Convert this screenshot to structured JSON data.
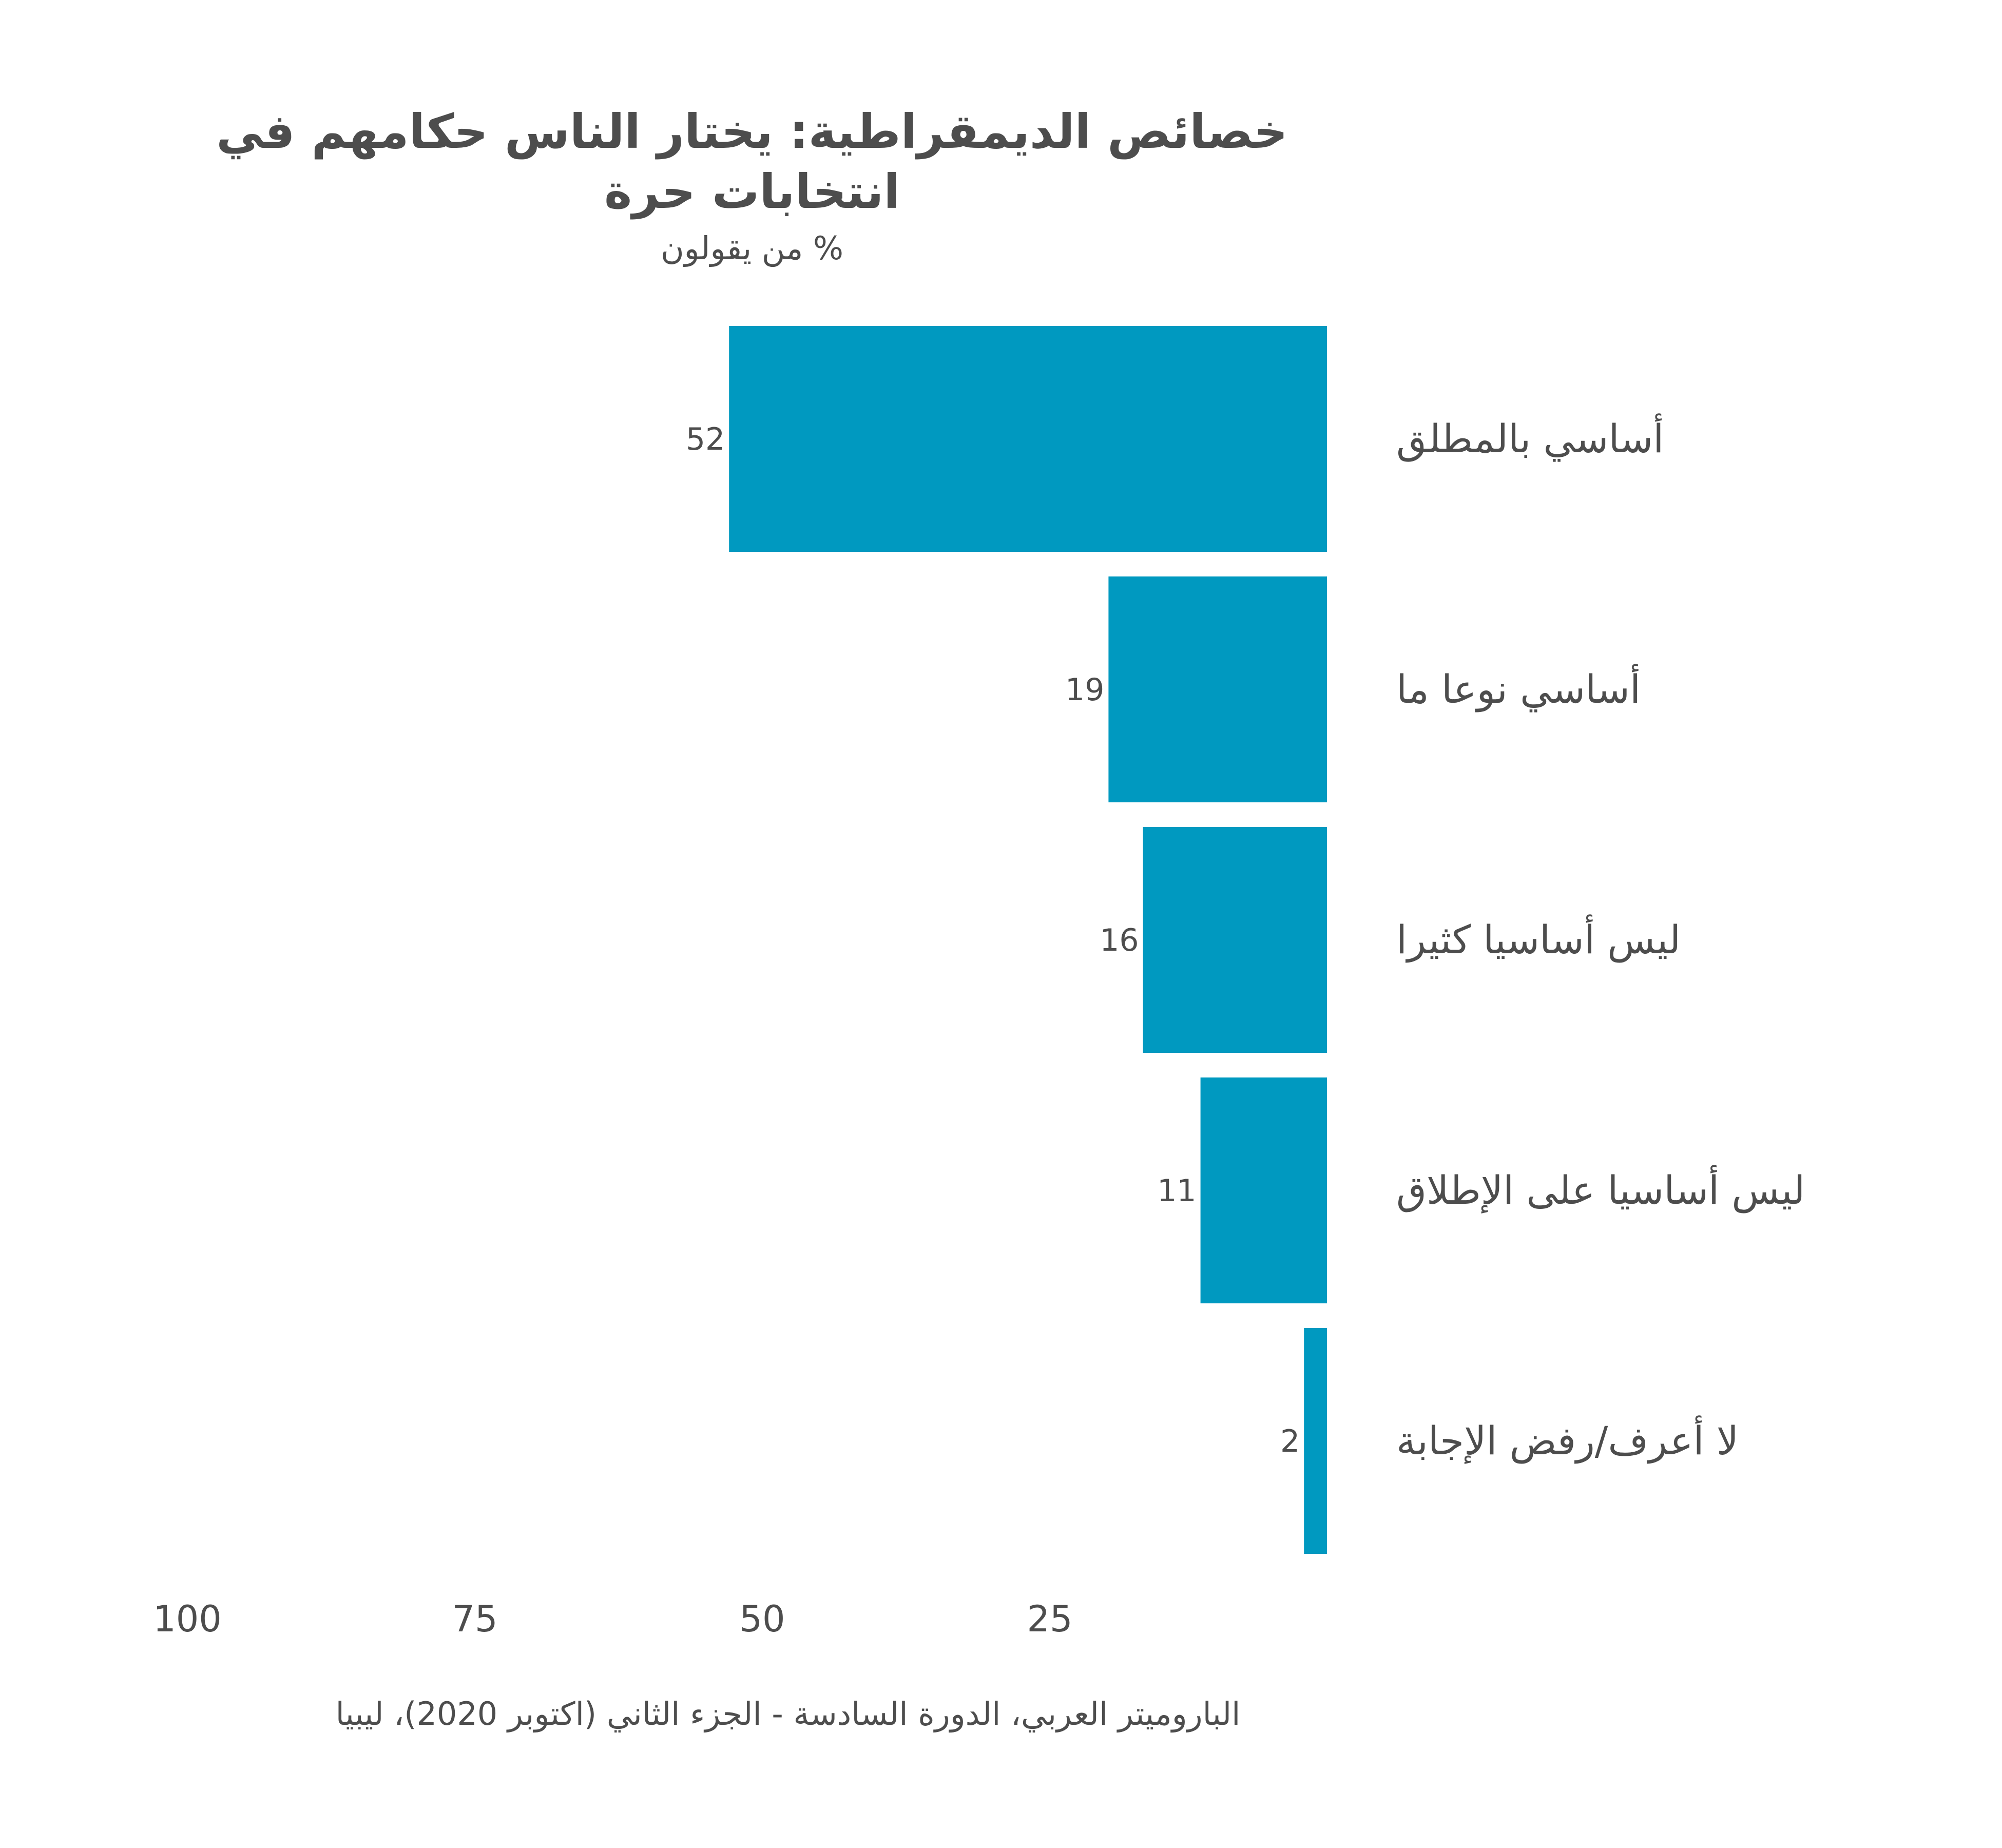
{
  "chart_data": {
    "type": "bar",
    "orientation": "horizontal",
    "direction": "right-to-left",
    "title": "خصائص الديمقراطية: يختار الناس حكامهم في انتخابات حرة",
    "title_lines": [
      "خصائص الديمقراطية: يختار الناس حكامهم في",
      "انتخابات حرة"
    ],
    "subtitle": "% من يقولون",
    "categories": [
      "أساسي بالمطلق",
      "أساسي نوعا ما",
      "ليس أساسيا كثيرا",
      "ليس أساسيا على الإطلاق",
      "لا أعرف/رفض الإجابة"
    ],
    "values": [
      52,
      19,
      16,
      11,
      2
    ],
    "value_labels": [
      "52",
      "19",
      "16",
      "11",
      "2"
    ],
    "xlim": [
      0,
      100
    ],
    "x_ticks": [
      100,
      75,
      50,
      25
    ],
    "x_tick_labels": [
      "100",
      "75",
      "50",
      "25"
    ],
    "grid": false,
    "bar_color": "#0099c0",
    "source": "الباروميتر العربي، الدورة السادسة - الجزء الثاني (اكتوبر 2020)، ليبيا"
  }
}
